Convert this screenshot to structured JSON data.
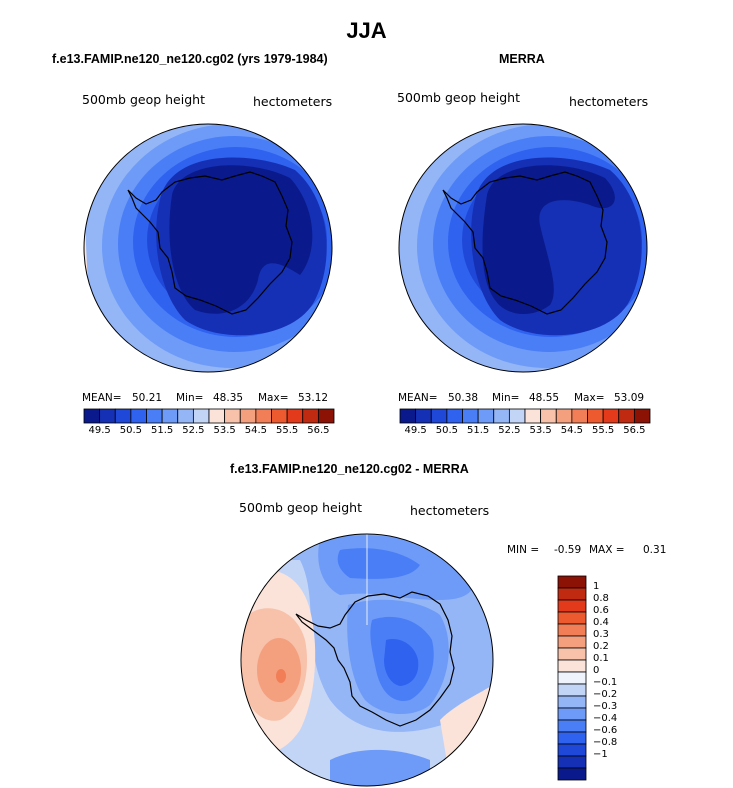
{
  "title": "JJA",
  "colors": {
    "abs_scale": [
      "#0a1a8c",
      "#1530b4",
      "#1f48d8",
      "#2f62ef",
      "#4a7ef7",
      "#6e9bf7",
      "#94b6f6",
      "#c3d5f7",
      "#fbe3d9",
      "#f7c1aa",
      "#f4a07e",
      "#f27e57",
      "#ee5a2f",
      "#e23a1a",
      "#c02a10",
      "#8c1206"
    ],
    "diff_scale": [
      "#0a1a8c",
      "#1530b4",
      "#1f48d8",
      "#2f62ef",
      "#4a7ef7",
      "#6e9bf7",
      "#94b6f6",
      "#c3d5f7",
      "#eef3fc",
      "#fbe3d9",
      "#f7c1aa",
      "#f4a07e",
      "#f27e57",
      "#ee5a2f",
      "#e23a1a",
      "#c02a10",
      "#8c1206"
    ]
  },
  "panels": [
    {
      "header": "f.e13.FAMIP.ne120_ne120.cg02 (yrs 1979-1984)",
      "field": "500mb geop height",
      "units": "hectometers",
      "mean_label": "MEAN=",
      "mean": "50.21",
      "min_label": "Min=",
      "min": "48.35",
      "max_label": "Max=",
      "max": "53.12",
      "ticks": [
        "49.5",
        "50.5",
        "51.5",
        "52.5",
        "53.5",
        "54.5",
        "55.5",
        "56.5"
      ]
    },
    {
      "header": "MERRA",
      "field": "500mb geop height",
      "units": "hectometers",
      "mean_label": "MEAN=",
      "mean": "50.38",
      "min_label": "Min=",
      "min": "48.55",
      "max_label": "Max=",
      "max": "53.09",
      "ticks": [
        "49.5",
        "50.5",
        "51.5",
        "52.5",
        "53.5",
        "54.5",
        "55.5",
        "56.5"
      ]
    }
  ],
  "diff": {
    "header": "f.e13.FAMIP.ne120_ne120.cg02 - MERRA",
    "field": "500mb geop height",
    "units": "hectometers",
    "min_label": "MIN =",
    "min": "-0.59",
    "max_label": "MAX =",
    "max": "0.31",
    "ticks": [
      "1",
      "0.8",
      "0.6",
      "0.4",
      "0.3",
      "0.2",
      "0.1",
      "0",
      "−0.1",
      "−0.2",
      "−0.3",
      "−0.4",
      "−0.6",
      "−0.8",
      "−1"
    ]
  }
}
